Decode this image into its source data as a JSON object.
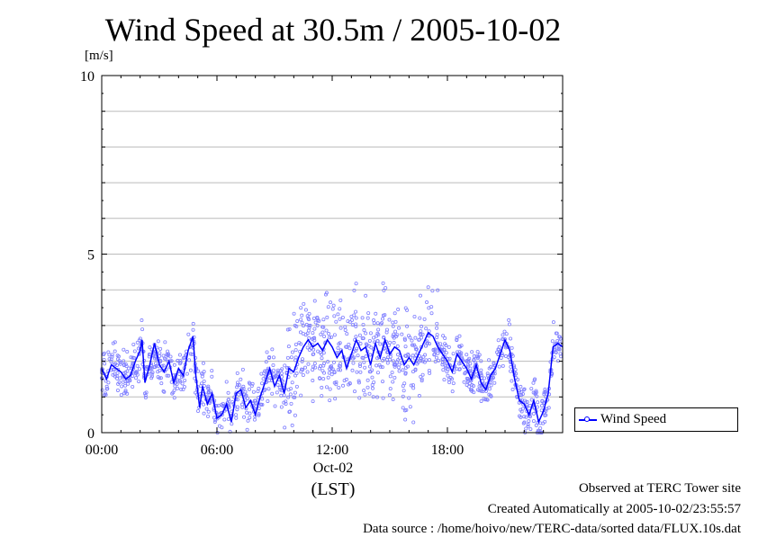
{
  "title": "Wind Speed at 30.5m / 2005-10-02",
  "y_unit": "[m/s]",
  "x_date_label": "Oct-02",
  "x_tz_label": "(LST)",
  "legend_label": "Wind Speed",
  "footer": {
    "line1": "Observed at TERC Tower site",
    "line2": "Created Automatically at 2005-10-02/23:55:57",
    "line3": "Data source : /home/hoivo/new/TERC-data/sorted  data/FLUX.10s.dat"
  },
  "colors": {
    "series": "#0000ff",
    "points": "#8080ff",
    "grid": "#bbbbbb"
  },
  "chart_data": {
    "type": "line",
    "title": "Wind Speed at 30.5m / 2005-10-02",
    "xlabel": "(LST)",
    "ylabel": "[m/s]",
    "xlim": [
      0,
      24
    ],
    "ylim": [
      0,
      10
    ],
    "x_ticks": [
      "00:00",
      "06:00",
      "12:00",
      "18:00"
    ],
    "x_tick_hours": [
      0,
      6,
      12,
      18
    ],
    "y_ticks": [
      "0",
      "5",
      "10"
    ],
    "y_tick_values": [
      0,
      5,
      10
    ],
    "grid": true,
    "legend": "right, outside plot",
    "series": [
      {
        "name": "Wind Speed",
        "x": [
          0.0,
          0.25,
          0.5,
          0.75,
          1.0,
          1.25,
          1.5,
          1.75,
          2.0,
          2.1,
          2.25,
          2.5,
          2.75,
          3.0,
          3.25,
          3.5,
          3.75,
          4.0,
          4.25,
          4.5,
          4.75,
          4.9,
          5.1,
          5.25,
          5.5,
          5.75,
          6.0,
          6.25,
          6.5,
          6.75,
          7.0,
          7.25,
          7.5,
          7.75,
          8.0,
          8.25,
          8.5,
          8.75,
          9.0,
          9.25,
          9.5,
          9.75,
          10.0,
          10.25,
          10.5,
          10.75,
          11.0,
          11.25,
          11.5,
          11.75,
          12.0,
          12.25,
          12.5,
          12.75,
          13.0,
          13.25,
          13.5,
          13.75,
          14.0,
          14.25,
          14.5,
          14.75,
          15.0,
          15.25,
          15.5,
          15.75,
          16.0,
          16.25,
          16.5,
          16.75,
          17.0,
          17.25,
          17.5,
          17.75,
          18.0,
          18.25,
          18.5,
          18.75,
          19.0,
          19.25,
          19.5,
          19.75,
          20.0,
          20.25,
          20.5,
          20.75,
          21.0,
          21.25,
          21.5,
          21.75,
          22.0,
          22.25,
          22.5,
          22.75,
          23.0,
          23.25,
          23.5,
          23.75,
          24.0
        ],
        "y": [
          1.8,
          1.5,
          1.9,
          1.8,
          1.7,
          1.5,
          1.6,
          2.0,
          2.3,
          2.6,
          1.4,
          1.9,
          2.5,
          1.9,
          1.7,
          2.0,
          1.4,
          1.8,
          1.6,
          2.3,
          2.7,
          1.6,
          0.7,
          1.3,
          0.8,
          1.1,
          0.4,
          0.5,
          0.8,
          0.3,
          1.1,
          1.2,
          0.7,
          0.9,
          0.5,
          1.0,
          1.4,
          1.8,
          1.3,
          1.6,
          1.1,
          1.8,
          1.7,
          2.1,
          2.4,
          2.6,
          2.4,
          2.5,
          2.3,
          2.6,
          2.4,
          2.1,
          2.3,
          1.8,
          2.2,
          2.6,
          2.3,
          2.4,
          1.9,
          2.5,
          2.1,
          2.6,
          2.2,
          2.4,
          2.3,
          1.9,
          2.1,
          1.9,
          2.2,
          2.5,
          2.8,
          2.7,
          2.4,
          2.2,
          2.0,
          1.7,
          2.2,
          2.0,
          1.8,
          1.5,
          1.9,
          1.4,
          1.2,
          1.6,
          1.8,
          2.2,
          2.6,
          2.3,
          1.5,
          0.9,
          0.8,
          0.5,
          0.9,
          0.3,
          0.6,
          1.1,
          2.4,
          2.5,
          2.4
        ]
      }
    ]
  }
}
